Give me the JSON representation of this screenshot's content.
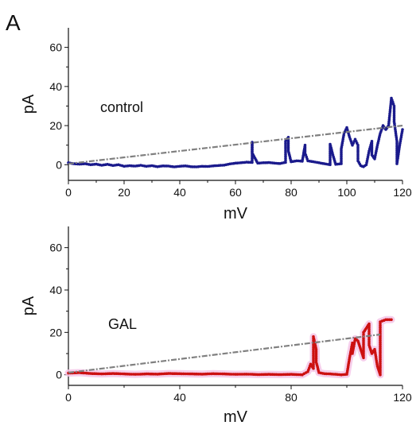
{
  "panel_letter": "A",
  "chart_data": [
    {
      "type": "scatter",
      "annotation": "control",
      "xlabel": "mV",
      "ylabel": "pA",
      "xlim": [
        0,
        120
      ],
      "ylim": [
        -8,
        70
      ],
      "xticks": [
        0,
        20,
        40,
        60,
        80,
        100,
        120
      ],
      "yticks": [
        0,
        20,
        40,
        60
      ],
      "grid": false,
      "series": [
        {
          "style": "dotted-trace",
          "color": "#1a1a8c",
          "points": [
            [
              0,
              1
            ],
            [
              2,
              0.5
            ],
            [
              4,
              0.3
            ],
            [
              6,
              0.5
            ],
            [
              8,
              0
            ],
            [
              10,
              0.3
            ],
            [
              12,
              -0.3
            ],
            [
              14,
              0.2
            ],
            [
              16,
              -0.4
            ],
            [
              18,
              0
            ],
            [
              20,
              -0.8
            ],
            [
              22,
              -0.5
            ],
            [
              24,
              -0.7
            ],
            [
              26,
              -0.3
            ],
            [
              28,
              -0.8
            ],
            [
              30,
              -0.5
            ],
            [
              32,
              -1
            ],
            [
              34,
              -0.6
            ],
            [
              36,
              -0.7
            ],
            [
              38,
              -1.1
            ],
            [
              40,
              -0.8
            ],
            [
              42,
              -0.6
            ],
            [
              44,
              -1
            ],
            [
              46,
              -1.1
            ],
            [
              48,
              -0.8
            ],
            [
              50,
              -0.9
            ],
            [
              52,
              -0.6
            ],
            [
              54,
              -0.4
            ],
            [
              56,
              -0.2
            ],
            [
              58,
              0.4
            ],
            [
              60,
              0.8
            ],
            [
              62,
              1
            ],
            [
              64,
              1.3
            ],
            [
              66,
              1.2
            ],
            [
              66,
              11.5
            ],
            [
              66,
              6
            ],
            [
              68,
              0.8
            ],
            [
              70,
              1
            ],
            [
              72,
              1.1
            ],
            [
              74,
              0.8
            ],
            [
              76,
              0.6
            ],
            [
              78,
              1.2
            ],
            [
              78,
              12
            ],
            [
              79,
              14
            ],
            [
              79,
              7
            ],
            [
              80,
              1.5
            ],
            [
              82,
              2
            ],
            [
              84,
              1.8
            ],
            [
              85,
              10
            ],
            [
              85,
              6
            ],
            [
              86,
              2
            ],
            [
              88,
              1.5
            ],
            [
              90,
              1
            ],
            [
              92,
              0.5
            ],
            [
              94,
              0
            ],
            [
              94,
              10.5
            ],
            [
              95,
              5
            ],
            [
              96,
              0.2
            ],
            [
              98,
              0.5
            ],
            [
              98,
              8
            ],
            [
              99,
              16
            ],
            [
              100,
              19
            ],
            [
              101,
              14
            ],
            [
              102,
              10
            ],
            [
              103,
              13
            ],
            [
              104,
              10
            ],
            [
              104,
              2
            ],
            [
              105,
              -0.5
            ],
            [
              106,
              -1
            ],
            [
              107,
              0
            ],
            [
              108,
              7
            ],
            [
              109,
              12
            ],
            [
              109,
              5
            ],
            [
              110,
              3
            ],
            [
              111,
              10
            ],
            [
              112,
              16
            ],
            [
              113,
              20
            ],
            [
              114,
              18
            ],
            [
              115,
              20
            ],
            [
              116,
              34
            ],
            [
              117,
              30
            ],
            [
              117,
              22
            ],
            [
              118,
              12
            ],
            [
              118,
              0.5
            ],
            [
              119,
              10
            ],
            [
              120,
              18
            ]
          ]
        },
        {
          "style": "dashed-line",
          "color": "#808080",
          "points": [
            [
              0,
              0.5
            ],
            [
              120,
              20
            ]
          ]
        }
      ]
    },
    {
      "type": "scatter",
      "annotation": "GAL",
      "xlabel": "mV",
      "ylabel": "pA",
      "xlim": [
        0,
        120
      ],
      "ylim": [
        -5,
        70
      ],
      "xticks": [
        0,
        40,
        80,
        120
      ],
      "yticks": [
        0,
        20,
        40,
        60
      ],
      "grid": false,
      "series": [
        {
          "style": "dotted-trace",
          "color": "#cc1111",
          "highlight_color": "#f5c6e8",
          "points": [
            [
              0,
              0.8
            ],
            [
              4,
              1
            ],
            [
              8,
              0.6
            ],
            [
              12,
              0.4
            ],
            [
              16,
              0.6
            ],
            [
              20,
              0.4
            ],
            [
              24,
              0.2
            ],
            [
              28,
              0.4
            ],
            [
              32,
              0.3
            ],
            [
              36,
              0.6
            ],
            [
              40,
              0.5
            ],
            [
              44,
              0.4
            ],
            [
              48,
              0.3
            ],
            [
              52,
              0.5
            ],
            [
              56,
              0.4
            ],
            [
              60,
              0.2
            ],
            [
              64,
              0.3
            ],
            [
              68,
              0.1
            ],
            [
              72,
              0.2
            ],
            [
              76,
              0.1
            ],
            [
              80,
              0.2
            ],
            [
              84,
              0
            ],
            [
              86,
              1.5
            ],
            [
              87,
              5
            ],
            [
              88,
              3
            ],
            [
              88,
              18
            ],
            [
              89,
              12
            ],
            [
              89,
              6
            ],
            [
              90,
              1
            ],
            [
              92,
              0.5
            ],
            [
              94,
              0.4
            ],
            [
              96,
              0.2
            ],
            [
              98,
              0
            ],
            [
              100,
              0.2
            ],
            [
              101,
              8
            ],
            [
              102,
              15
            ],
            [
              102,
              10
            ],
            [
              103,
              17
            ],
            [
              104,
              16
            ],
            [
              105,
              12
            ],
            [
              106,
              8
            ],
            [
              106,
              20
            ],
            [
              107,
              22
            ],
            [
              108,
              24
            ],
            [
              108,
              14
            ],
            [
              109,
              10
            ],
            [
              110,
              12
            ],
            [
              111,
              4
            ],
            [
              112,
              0
            ],
            [
              112,
              25
            ],
            [
              114,
              26
            ],
            [
              116,
              26
            ]
          ]
        },
        {
          "style": "dashed-line",
          "color": "#808080",
          "points": [
            [
              0,
              1
            ],
            [
              112,
              19
            ]
          ]
        }
      ]
    }
  ]
}
